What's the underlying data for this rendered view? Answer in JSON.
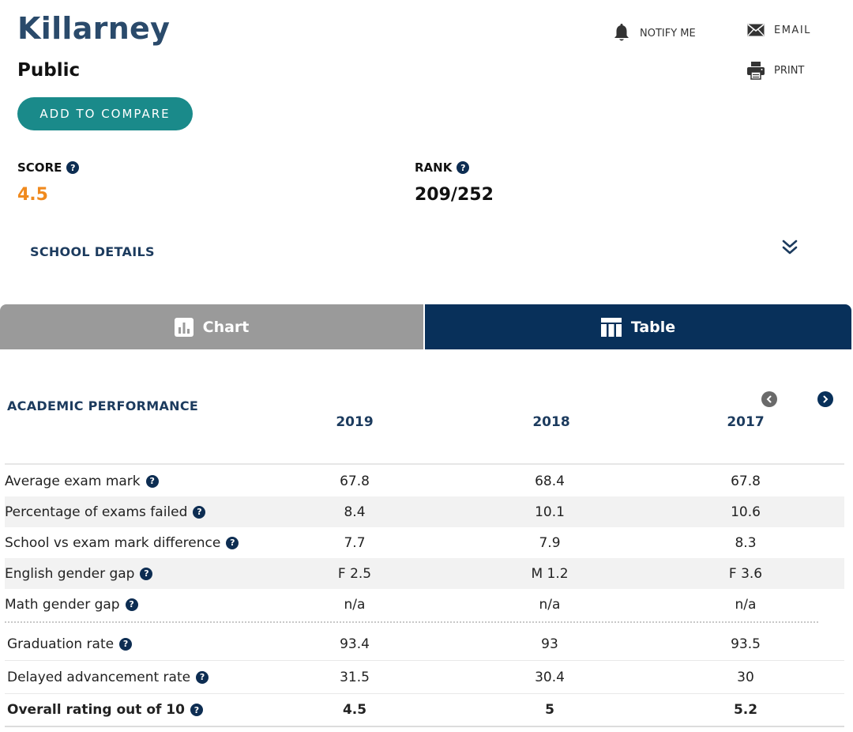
{
  "school": {
    "name": "Killarney",
    "type": "Public",
    "compare_label": "ADD TO COMPARE"
  },
  "actions": {
    "notify_label": "NOTIFY ME",
    "email_label": "EMAIL",
    "print_label": "PRINT"
  },
  "stats": {
    "score_label": "SCORE",
    "score_value": "4.5",
    "rank_label": "RANK",
    "rank_value": "209/252",
    "help_glyph": "?"
  },
  "details_label": "SCHOOL DETAILS",
  "tabs": {
    "chart_label": "Chart",
    "table_label": "Table",
    "active": "Table"
  },
  "performance": {
    "title": "ACADEMIC PERFORMANCE",
    "years": [
      "2019",
      "2018",
      "2017"
    ],
    "rows": [
      {
        "label": "Average exam mark",
        "values": [
          "67.8",
          "68.4",
          "67.8"
        ]
      },
      {
        "label": "Percentage of exams failed",
        "values": [
          "8.4",
          "10.1",
          "10.6"
        ]
      },
      {
        "label": "School vs exam mark difference",
        "values": [
          "7.7",
          "7.9",
          "8.3"
        ]
      },
      {
        "label": "English gender gap",
        "values": [
          "F 2.5",
          "M 1.2",
          "F 3.6"
        ]
      },
      {
        "label": "Math gender gap",
        "values": [
          "n/a",
          "n/a",
          "n/a"
        ]
      },
      {
        "label": "Graduation rate",
        "values": [
          "93.4",
          "93",
          "93.5"
        ]
      },
      {
        "label": "Delayed advancement rate",
        "values": [
          "31.5",
          "30.4",
          "30"
        ]
      },
      {
        "label": "Overall rating out of 10",
        "values": [
          "4.5",
          "5",
          "5.2"
        ]
      }
    ]
  },
  "colors": {
    "brand_navy": "#08305a",
    "heading_blue": "#1c3b5e",
    "teal_button": "#1a8a8a",
    "score_orange": "#f08a1e",
    "inactive_tab": "#9a9a9a"
  }
}
